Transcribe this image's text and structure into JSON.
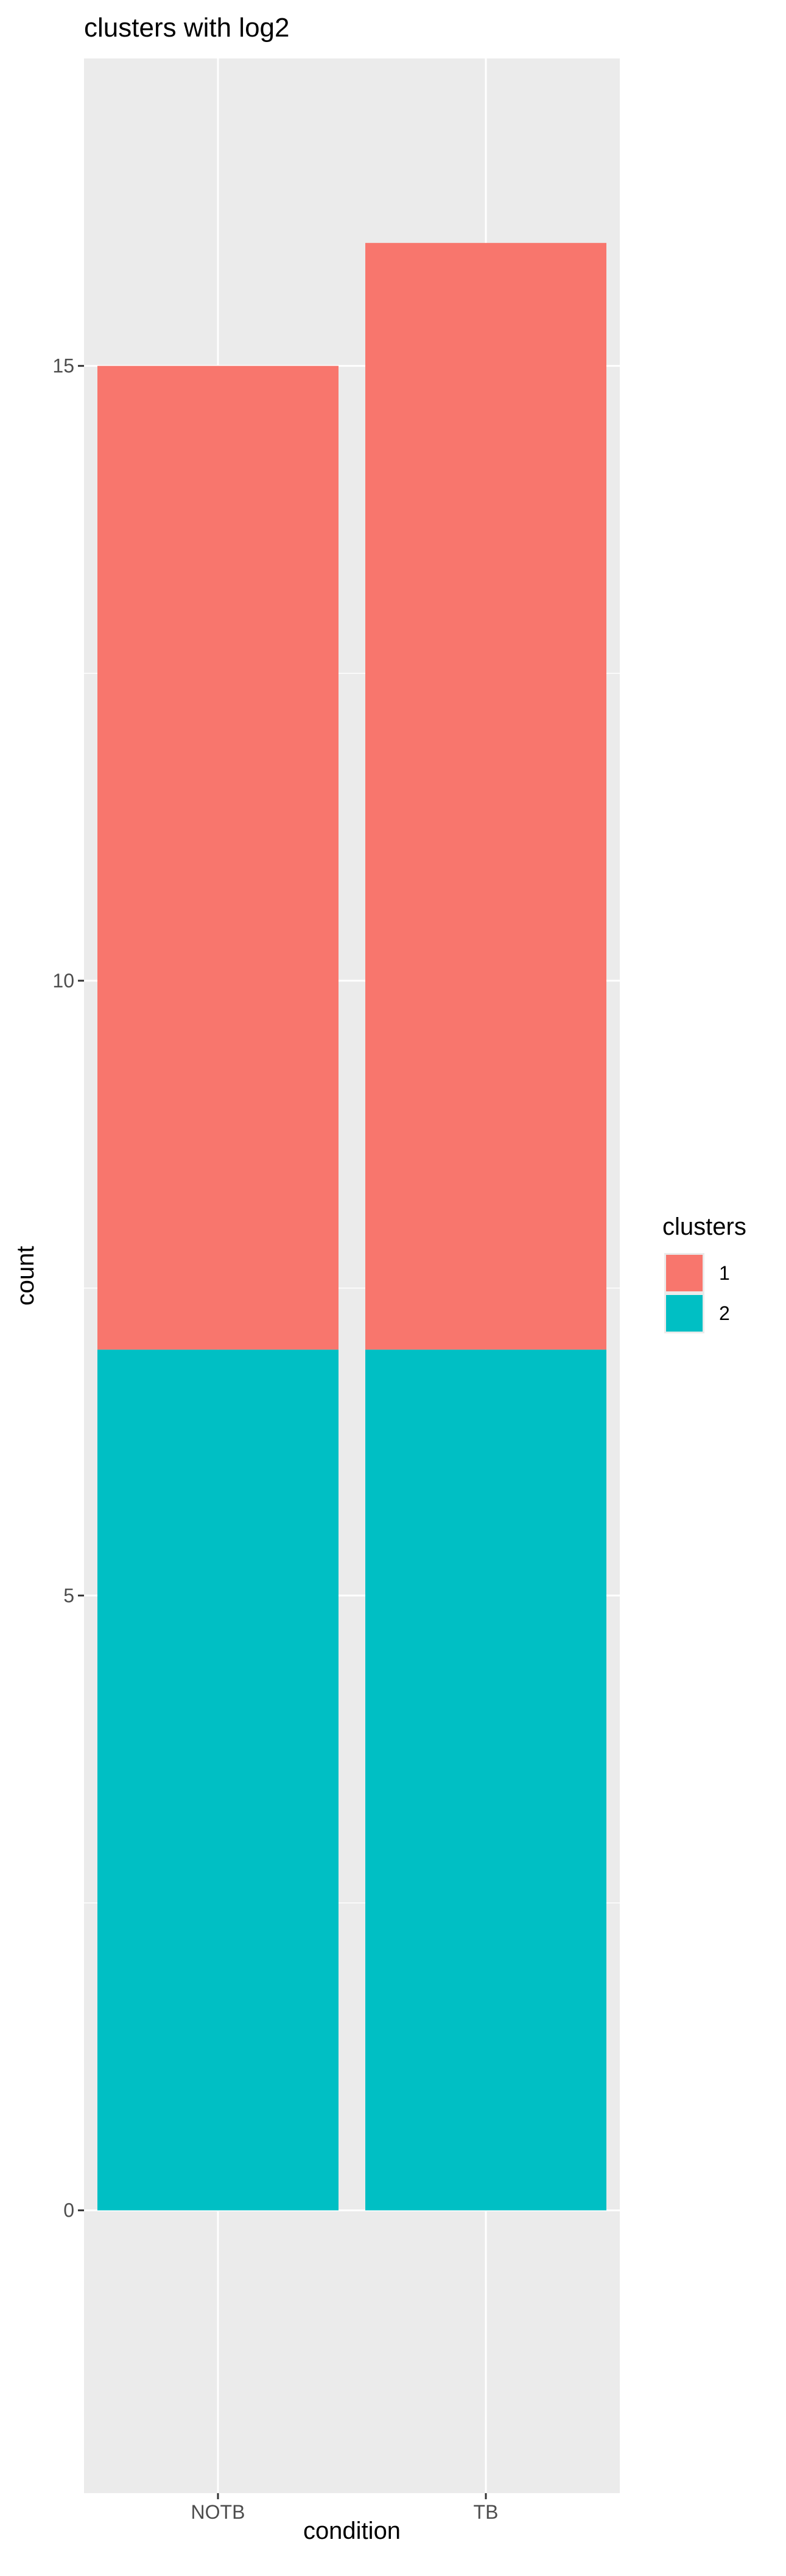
{
  "chart_data": {
    "type": "bar",
    "stacked": true,
    "title": "clusters with log2",
    "xlabel": "condition",
    "ylabel": "count",
    "categories": [
      "NOTB",
      "TB"
    ],
    "series": [
      {
        "name": "1",
        "values": [
          8,
          9
        ],
        "color": "#F8766D"
      },
      {
        "name": "2",
        "values": [
          7,
          7
        ],
        "color": "#00BFC4"
      }
    ],
    "ylim": [
      -2.3,
      17.5
    ],
    "yticks": [
      0,
      5,
      10,
      15
    ],
    "ytick_labels": [
      "0",
      "5",
      "10",
      "15"
    ],
    "grid": true,
    "legend": {
      "title": "clusters",
      "position": "right",
      "entries": [
        "1",
        "2"
      ]
    },
    "colors": {
      "panel_background": "#EBEBEB",
      "grid": "#FFFFFF",
      "tick_text": "#4D4D4D"
    }
  }
}
